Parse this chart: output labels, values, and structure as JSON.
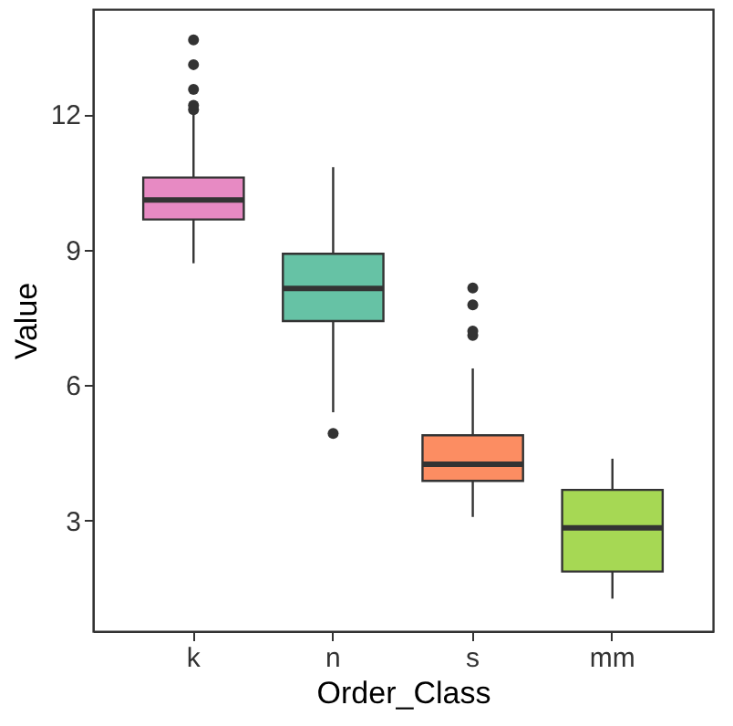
{
  "chart_data": {
    "type": "box",
    "xlabel": "Order_Class",
    "ylabel": "Value",
    "categories": [
      "k",
      "n",
      "s",
      "mm"
    ],
    "colors": [
      "#e78ac3",
      "#66c2a5",
      "#fc8d62",
      "#a6d854"
    ],
    "boxes": [
      {
        "low": 8.7,
        "q1": 9.67,
        "median": 10.1,
        "q3": 10.6,
        "high": 12.05,
        "outliers": [
          12.1,
          12.2,
          12.55,
          13.1,
          13.65
        ]
      },
      {
        "low": 5.4,
        "q1": 7.42,
        "median": 8.14,
        "q3": 8.91,
        "high": 10.83,
        "outliers": [
          4.93
        ]
      },
      {
        "low": 3.08,
        "q1": 3.88,
        "median": 4.25,
        "q3": 4.89,
        "high": 6.37,
        "outliers": [
          7.1,
          7.2,
          7.78,
          8.15
        ]
      },
      {
        "low": 1.27,
        "q1": 1.87,
        "median": 2.84,
        "q3": 3.68,
        "high": 4.37
      }
    ],
    "ylim": [
      0.55,
      14.33
    ],
    "yticks": [
      3,
      6,
      9,
      12
    ],
    "grid": false
  }
}
